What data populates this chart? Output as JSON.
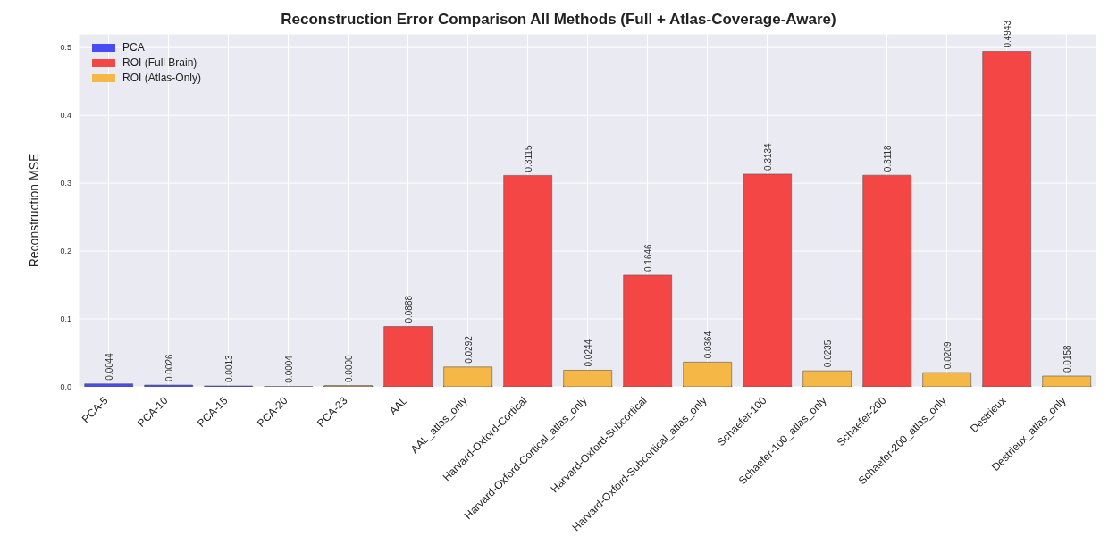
{
  "chart_data": {
    "type": "bar",
    "title": "Reconstruction Error Comparison All Methods (Full + Atlas-Coverage-Aware)",
    "ylabel": "Reconstruction MSE",
    "categories": [
      "PCA-5",
      "PCA-10",
      "PCA-15",
      "PCA-20",
      "PCA-23",
      "AAL",
      "AAL_atlas_only",
      "Harvard-Oxford-Cortical",
      "Harvard-Oxford-Cortical_atlas_only",
      "Harvard-Oxford-Subcortical",
      "Harvard-Oxford-Subcortical_atlas_only",
      "Schaefer-100",
      "Schaefer-100_atlas_only",
      "Schaefer-200",
      "Schaefer-200_atlas_only",
      "Destrieux",
      "Destrieux_atlas_only"
    ],
    "stacked": true,
    "series": [
      {
        "name": "PCA",
        "color": "#4b4bf5",
        "values": [
          0.0044,
          0.0026,
          0.0013,
          0.0004,
          0.0,
          null,
          null,
          null,
          null,
          null,
          null,
          null,
          null,
          null,
          null,
          null,
          null
        ],
        "value_labels": [
          "0.0044",
          "0.0026",
          "0.0013",
          "0.0004",
          "0.0000",
          null,
          null,
          null,
          null,
          null,
          null,
          null,
          null,
          null,
          null,
          null,
          null
        ]
      },
      {
        "name": "ROI (Full Brain)",
        "color": "#f54646",
        "values": [
          null,
          null,
          null,
          null,
          null,
          0.0888,
          null,
          0.3115,
          null,
          0.1646,
          null,
          0.3134,
          null,
          0.3118,
          null,
          0.4943,
          null
        ],
        "value_labels": [
          null,
          null,
          null,
          null,
          null,
          "0.0888",
          null,
          "0.3115",
          null,
          "0.1646",
          null,
          "0.3134",
          null,
          "0.3118",
          null,
          "0.4943",
          null
        ]
      },
      {
        "name": "ROI (Atlas-Only)",
        "color": "#f5b847",
        "values": [
          null,
          null,
          null,
          null,
          null,
          null,
          0.0292,
          null,
          0.0244,
          null,
          0.0364,
          null,
          0.0235,
          null,
          0.0209,
          null,
          0.0158
        ],
        "value_labels": [
          null,
          null,
          null,
          null,
          null,
          null,
          "0.0292",
          null,
          "0.0244",
          null,
          "0.0364",
          null,
          "0.0235",
          null,
          "0.0209",
          null,
          "0.0158"
        ]
      }
    ],
    "ylim": [
      0,
      0.52
    ],
    "yticks": [
      {
        "value": 0,
        "label": "0.0"
      },
      {
        "value": 0.1,
        "label": "0.1"
      },
      {
        "value": 0.2,
        "label": "0.2"
      },
      {
        "value": 0.3,
        "label": "0.3"
      },
      {
        "value": 0.4,
        "label": "0.4"
      },
      {
        "value": 0.5,
        "label": "0.5"
      }
    ],
    "grid": true,
    "legend": "top left"
  }
}
